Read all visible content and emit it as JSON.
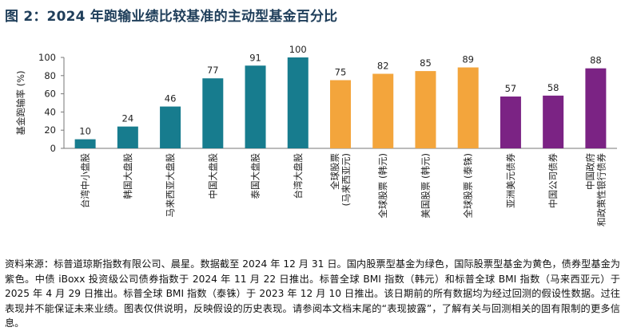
{
  "figure": {
    "title": "图 2：2024 年跑输业绩比较基准的主动型基金百分比"
  },
  "chart_data": {
    "type": "bar",
    "title": "图 2：2024 年跑输业绩比较基准的主动型基金百分比",
    "ylabel": "基金跑输率 (%)",
    "xlabel": "",
    "ylim": [
      0,
      100
    ],
    "yticks": [
      0,
      20,
      40,
      60,
      80,
      100
    ],
    "grid": false,
    "categories": [
      [
        "台湾中小盘股"
      ],
      [
        "韩国大盘股"
      ],
      [
        "马来西亚大盘股"
      ],
      [
        "中国大盘股"
      ],
      [
        "泰国大盘股"
      ],
      [
        "台湾大盘股"
      ],
      [
        "全球股票",
        "(马来西亚元)"
      ],
      [
        "全球股票 (韩元)"
      ],
      [
        "美国股票 (韩元)"
      ],
      [
        "全球股票 (泰铢)"
      ],
      [
        "亚洲美元债券"
      ],
      [
        "中国公司债券"
      ],
      [
        "中国政府",
        "和政策性银行债券"
      ]
    ],
    "values": [
      10,
      24,
      46,
      77,
      91,
      100,
      75,
      82,
      85,
      89,
      57,
      58,
      88
    ],
    "groups": [
      "domestic-equity",
      "domestic-equity",
      "domestic-equity",
      "domestic-equity",
      "domestic-equity",
      "domestic-equity",
      "intl-equity",
      "intl-equity",
      "intl-equity",
      "intl-equity",
      "bond",
      "bond",
      "bond"
    ],
    "colors": {
      "domestic-equity": "#177c8e",
      "intl-equity": "#f3a53c",
      "bond": "#7b2384"
    }
  },
  "source_note": "资料来源：标普道琼斯指数有限公司、晨星。数据截至 2024 年 12 月 31 日。国内股票型基金为绿色，国际股票型基金为黄色，债券型基金为紫色。中债 iBoxx 投资级公司债券指数于 2024 年 11 月 22 日推出。标普全球 BMI 指数（韩元）和标普全球 BMI 指数（马来西亚元）于 2025 年 4 月 29 日推出。标普全球 BMI 指数（泰铢）于 2023 年 12 月 10 日推出。该日期前的所有数据均为经过回测的假设性数据。过往表现并不能保证未来业绩。图表仅供说明，反映假设的历史表现。请参阅本文档末尾的“表现披露”，了解有关与回测相关的固有限制的更多信息。"
}
